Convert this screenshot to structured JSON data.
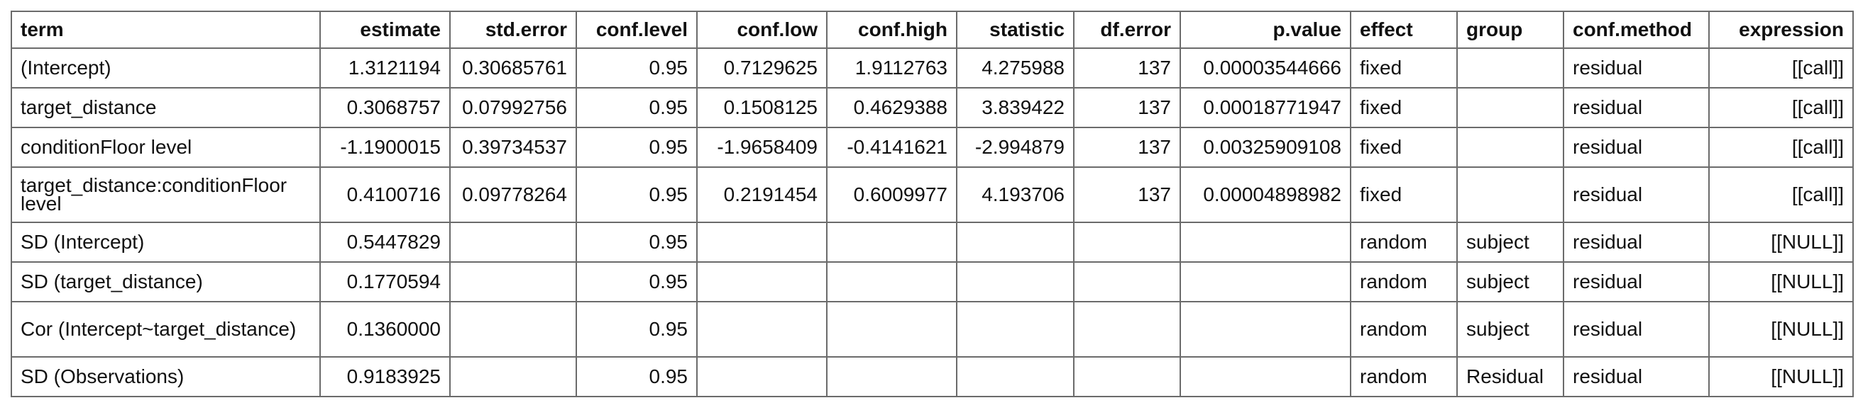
{
  "columns": [
    {
      "key": "term",
      "label": "term",
      "align": "l"
    },
    {
      "key": "estimate",
      "label": "estimate",
      "align": "r"
    },
    {
      "key": "std_error",
      "label": "std.error",
      "align": "r"
    },
    {
      "key": "conf_level",
      "label": "conf.level",
      "align": "r"
    },
    {
      "key": "conf_low",
      "label": "conf.low",
      "align": "r"
    },
    {
      "key": "conf_high",
      "label": "conf.high",
      "align": "r"
    },
    {
      "key": "statistic",
      "label": "statistic",
      "align": "r"
    },
    {
      "key": "df_error",
      "label": "df.error",
      "align": "r"
    },
    {
      "key": "p_value",
      "label": "p.value",
      "align": "r"
    },
    {
      "key": "effect",
      "label": "effect",
      "align": "l"
    },
    {
      "key": "group",
      "label": "group",
      "align": "l"
    },
    {
      "key": "conf_method",
      "label": "conf.method",
      "align": "l"
    },
    {
      "key": "expression",
      "label": "expression",
      "align": "r"
    }
  ],
  "rows": [
    [
      "(Intercept)",
      "1.3121194",
      "0.30685761",
      "0.95",
      "0.7129625",
      "1.9112763",
      "4.275988",
      "137",
      "0.00003544666",
      "fixed",
      "",
      "residual",
      "[[call]]"
    ],
    [
      "target_distance",
      "0.3068757",
      "0.07992756",
      "0.95",
      "0.1508125",
      "0.4629388",
      "3.839422",
      "137",
      "0.00018771947",
      "fixed",
      "",
      "residual",
      "[[call]]"
    ],
    [
      "conditionFloor level",
      "-1.1900015",
      "0.39734537",
      "0.95",
      "-1.9658409",
      "-0.4141621",
      "-2.994879",
      "137",
      "0.00325909108",
      "fixed",
      "",
      "residual",
      "[[call]]"
    ],
    [
      "target_distance:conditionFloor level",
      "0.4100716",
      "0.09778264",
      "0.95",
      "0.2191454",
      "0.6009977",
      "4.193706",
      "137",
      "0.00004898982",
      "fixed",
      "",
      "residual",
      "[[call]]"
    ],
    [
      "SD (Intercept)",
      "0.5447829",
      "",
      "0.95",
      "",
      "",
      "",
      "",
      "",
      "random",
      "subject",
      "residual",
      "[[NULL]]"
    ],
    [
      "SD (target_distance)",
      "0.1770594",
      "",
      "0.95",
      "",
      "",
      "",
      "",
      "",
      "random",
      "subject",
      "residual",
      "[[NULL]]"
    ],
    [
      "Cor (Intercept~target_distance)",
      "0.1360000",
      "",
      "0.95",
      "",
      "",
      "",
      "",
      "",
      "random",
      "subject",
      "residual",
      "[[NULL]]"
    ],
    [
      "SD (Observations)",
      "0.9183925",
      "",
      "0.95",
      "",
      "",
      "",
      "",
      "",
      "random",
      "Residual",
      "residual",
      "[[NULL]]"
    ]
  ],
  "tall_rows": [
    3,
    6
  ]
}
